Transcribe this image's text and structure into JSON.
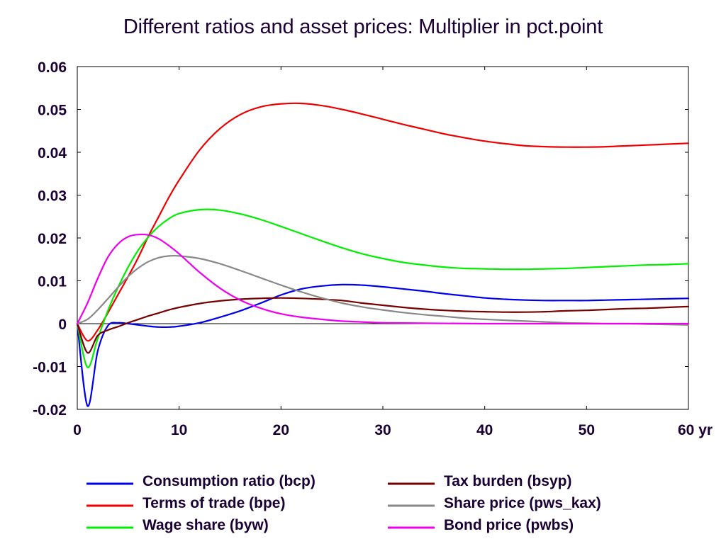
{
  "chart_data": {
    "type": "line",
    "title": "Different ratios and asset prices: Multiplier in pct.point",
    "xlabel": "",
    "ylabel": "",
    "xlim": [
      0,
      60
    ],
    "ylim": [
      -0.02,
      0.06
    ],
    "x_ticks": [
      0,
      10,
      20,
      30,
      40,
      50,
      60
    ],
    "x_tick_labels": [
      "0",
      "10",
      "20",
      "30",
      "40",
      "50",
      "60 yr"
    ],
    "y_ticks": [
      -0.02,
      -0.01,
      0,
      0.01,
      0.02,
      0.03,
      0.04,
      0.05,
      0.06
    ],
    "y_tick_labels": [
      "-0.02",
      "-0.01",
      "0",
      "0.01",
      "0.02",
      "0.03",
      "0.04",
      "0.05",
      "0.06"
    ],
    "grid": false,
    "zero_line": true,
    "legend_position": "bottom",
    "series": [
      {
        "name": "Consumption ratio (bcp)",
        "color": "#0000ee",
        "points": [
          [
            0,
            0
          ],
          [
            1,
            -0.0192
          ],
          [
            2,
            -0.0065
          ],
          [
            3,
            -0.0005
          ],
          [
            4,
            0.0002
          ],
          [
            5,
            0.0
          ],
          [
            6,
            -0.0003
          ],
          [
            7,
            -0.0006
          ],
          [
            8,
            -0.0008
          ],
          [
            9,
            -0.0008
          ],
          [
            10,
            -0.0006
          ],
          [
            12,
            0.0002
          ],
          [
            14,
            0.0015
          ],
          [
            16,
            0.003
          ],
          [
            18,
            0.0048
          ],
          [
            20,
            0.0067
          ],
          [
            22,
            0.0081
          ],
          [
            24,
            0.0088
          ],
          [
            26,
            0.0091
          ],
          [
            28,
            0.009
          ],
          [
            30,
            0.0086
          ],
          [
            32,
            0.0081
          ],
          [
            34,
            0.0076
          ],
          [
            36,
            0.007
          ],
          [
            38,
            0.0065
          ],
          [
            40,
            0.006
          ],
          [
            42,
            0.0057
          ],
          [
            44,
            0.0055
          ],
          [
            46,
            0.0054
          ],
          [
            48,
            0.0054
          ],
          [
            50,
            0.0054
          ],
          [
            52,
            0.0055
          ],
          [
            54,
            0.0056
          ],
          [
            56,
            0.0057
          ],
          [
            58,
            0.0058
          ],
          [
            60,
            0.0059
          ]
        ]
      },
      {
        "name": "Terms of trade (bpe)",
        "color": "#ee0000",
        "points": [
          [
            0,
            0
          ],
          [
            1,
            -0.004
          ],
          [
            2,
            -0.0015
          ],
          [
            3,
            0.0025
          ],
          [
            4,
            0.0068
          ],
          [
            5,
            0.011
          ],
          [
            6,
            0.0155
          ],
          [
            7,
            0.0205
          ],
          [
            8,
            0.025
          ],
          [
            9,
            0.0295
          ],
          [
            10,
            0.0335
          ],
          [
            12,
            0.0405
          ],
          [
            14,
            0.0455
          ],
          [
            16,
            0.0488
          ],
          [
            18,
            0.0506
          ],
          [
            20,
            0.0513
          ],
          [
            22,
            0.0514
          ],
          [
            24,
            0.0509
          ],
          [
            26,
            0.05
          ],
          [
            28,
            0.0489
          ],
          [
            30,
            0.0477
          ],
          [
            32,
            0.0465
          ],
          [
            34,
            0.0454
          ],
          [
            36,
            0.0443
          ],
          [
            38,
            0.0434
          ],
          [
            40,
            0.0426
          ],
          [
            42,
            0.042
          ],
          [
            44,
            0.0415
          ],
          [
            46,
            0.0413
          ],
          [
            48,
            0.0412
          ],
          [
            50,
            0.0412
          ],
          [
            52,
            0.0413
          ],
          [
            54,
            0.0415
          ],
          [
            56,
            0.0417
          ],
          [
            58,
            0.0419
          ],
          [
            60,
            0.0421
          ]
        ]
      },
      {
        "name": "Wage share (byw)",
        "color": "#00ee00",
        "points": [
          [
            0,
            0
          ],
          [
            1,
            -0.0102
          ],
          [
            2,
            -0.0035
          ],
          [
            3,
            0.003
          ],
          [
            4,
            0.0085
          ],
          [
            5,
            0.0132
          ],
          [
            6,
            0.0172
          ],
          [
            7,
            0.0203
          ],
          [
            8,
            0.0227
          ],
          [
            9,
            0.0245
          ],
          [
            10,
            0.0257
          ],
          [
            12,
            0.0266
          ],
          [
            14,
            0.0265
          ],
          [
            16,
            0.0256
          ],
          [
            18,
            0.0243
          ],
          [
            20,
            0.0227
          ],
          [
            22,
            0.021
          ],
          [
            24,
            0.0193
          ],
          [
            26,
            0.0177
          ],
          [
            28,
            0.0163
          ],
          [
            30,
            0.0152
          ],
          [
            32,
            0.0143
          ],
          [
            34,
            0.0137
          ],
          [
            36,
            0.0132
          ],
          [
            38,
            0.0129
          ],
          [
            40,
            0.0128
          ],
          [
            42,
            0.0127
          ],
          [
            44,
            0.0127
          ],
          [
            46,
            0.0128
          ],
          [
            48,
            0.0129
          ],
          [
            50,
            0.0131
          ],
          [
            52,
            0.0133
          ],
          [
            54,
            0.0135
          ],
          [
            56,
            0.0137
          ],
          [
            58,
            0.0138
          ],
          [
            60,
            0.014
          ]
        ]
      },
      {
        "name": "Tax burden (bsyp)",
        "color": "#770000",
        "points": [
          [
            0,
            0
          ],
          [
            1,
            -0.0068
          ],
          [
            2,
            -0.0028
          ],
          [
            3,
            -0.0015
          ],
          [
            4,
            -0.0007
          ],
          [
            5,
            0.0002
          ],
          [
            6,
            0.001
          ],
          [
            7,
            0.0018
          ],
          [
            8,
            0.0025
          ],
          [
            9,
            0.0032
          ],
          [
            10,
            0.0038
          ],
          [
            12,
            0.0047
          ],
          [
            14,
            0.0053
          ],
          [
            16,
            0.0057
          ],
          [
            18,
            0.0059
          ],
          [
            20,
            0.006
          ],
          [
            22,
            0.0059
          ],
          [
            24,
            0.0057
          ],
          [
            26,
            0.0054
          ],
          [
            28,
            0.0048
          ],
          [
            30,
            0.0043
          ],
          [
            32,
            0.0038
          ],
          [
            34,
            0.0034
          ],
          [
            36,
            0.0031
          ],
          [
            38,
            0.0029
          ],
          [
            40,
            0.0028
          ],
          [
            42,
            0.0027
          ],
          [
            44,
            0.0027
          ],
          [
            46,
            0.0028
          ],
          [
            48,
            0.003
          ],
          [
            50,
            0.0031
          ],
          [
            52,
            0.0033
          ],
          [
            54,
            0.0035
          ],
          [
            56,
            0.0036
          ],
          [
            58,
            0.0038
          ],
          [
            60,
            0.004
          ]
        ]
      },
      {
        "name": "Share price (pws_kax)",
        "color": "#888888",
        "points": [
          [
            0,
            0
          ],
          [
            1,
            0.001
          ],
          [
            2,
            0.0032
          ],
          [
            3,
            0.0058
          ],
          [
            4,
            0.0085
          ],
          [
            5,
            0.011
          ],
          [
            6,
            0.013
          ],
          [
            7,
            0.0145
          ],
          [
            8,
            0.0154
          ],
          [
            9,
            0.0158
          ],
          [
            10,
            0.0158
          ],
          [
            12,
            0.0152
          ],
          [
            14,
            0.014
          ],
          [
            16,
            0.0124
          ],
          [
            18,
            0.0107
          ],
          [
            20,
            0.009
          ],
          [
            22,
            0.0074
          ],
          [
            24,
            0.006
          ],
          [
            26,
            0.0048
          ],
          [
            28,
            0.0039
          ],
          [
            30,
            0.0032
          ],
          [
            32,
            0.0026
          ],
          [
            34,
            0.0021
          ],
          [
            36,
            0.0017
          ],
          [
            38,
            0.0013
          ],
          [
            40,
            0.001
          ],
          [
            42,
            0.0008
          ],
          [
            44,
            0.0006
          ],
          [
            46,
            0.0004
          ],
          [
            48,
            0.0002
          ],
          [
            50,
            0.0001
          ],
          [
            52,
            0.0
          ],
          [
            54,
            0.0
          ],
          [
            56,
            -0.0001
          ],
          [
            58,
            -0.0002
          ],
          [
            60,
            -0.0003
          ]
        ]
      },
      {
        "name": "Bond price (pwbs)",
        "color": "#ee00ee",
        "points": [
          [
            0,
            0
          ],
          [
            1,
            0.0048
          ],
          [
            2,
            0.0105
          ],
          [
            3,
            0.0155
          ],
          [
            4,
            0.0186
          ],
          [
            5,
            0.0203
          ],
          [
            6,
            0.0208
          ],
          [
            7,
            0.0207
          ],
          [
            8,
            0.0198
          ],
          [
            9,
            0.0182
          ],
          [
            10,
            0.0163
          ],
          [
            12,
            0.012
          ],
          [
            14,
            0.0083
          ],
          [
            16,
            0.0055
          ],
          [
            18,
            0.0036
          ],
          [
            20,
            0.0023
          ],
          [
            22,
            0.0015
          ],
          [
            24,
            0.001
          ],
          [
            26,
            0.0006
          ],
          [
            28,
            0.0004
          ],
          [
            30,
            0.0002
          ],
          [
            34,
            0.0001
          ],
          [
            40,
            0.0
          ],
          [
            50,
            0.0
          ],
          [
            60,
            0.0
          ]
        ]
      }
    ]
  }
}
